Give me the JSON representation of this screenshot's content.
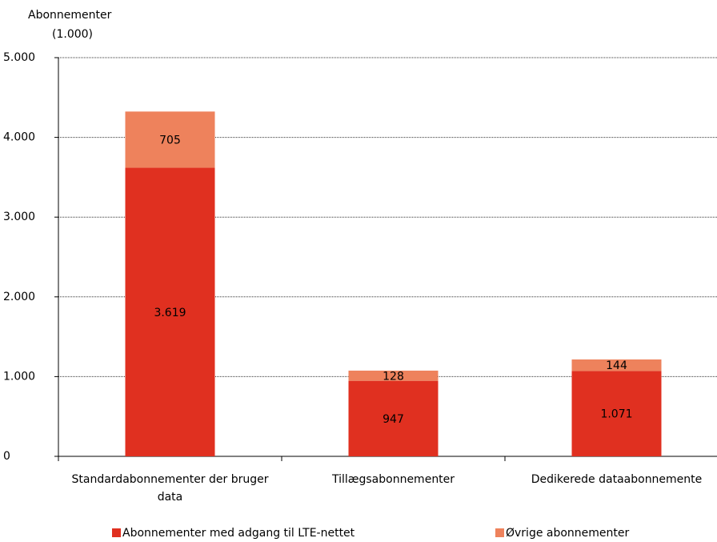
{
  "chart_data": {
    "type": "stacked_bar",
    "y_label": [
      "Abonnementer",
      "(1.000)"
    ],
    "categories": [
      "Standardabonnementer der bruger data",
      "Tillægsabonnementer",
      "Dedikerede dataabonnemente"
    ],
    "series": [
      {
        "name": "Abonnementer med adgang til LTE-nettet",
        "color": "#e03020",
        "values": [
          3619,
          947,
          1071
        ],
        "value_labels": [
          "3.619",
          "947",
          "1.071"
        ]
      },
      {
        "name": "Øvrige abonnementer",
        "color": "#ee825c",
        "values": [
          705,
          128,
          144
        ],
        "value_labels": [
          "705",
          "128",
          "144"
        ]
      }
    ],
    "ylim": [
      0,
      5000
    ],
    "yticks": [
      0,
      {
        "value": 1000,
        "label": "1.000"
      },
      {
        "value": 2000,
        "label": "2.000"
      },
      {
        "value": 3000,
        "label": "3.000"
      },
      {
        "value": 4000,
        "label": "4.000"
      },
      {
        "value": 5000,
        "label": "5.000"
      }
    ],
    "grid": true
  }
}
